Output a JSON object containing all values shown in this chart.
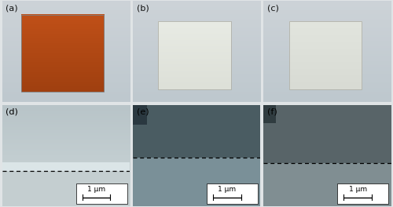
{
  "fig_width": 5.0,
  "fig_height": 2.64,
  "dpi": 100,
  "panel_labels": [
    "(a)",
    "(b)",
    "(c)",
    "(d)",
    "(e)",
    "(f)"
  ],
  "photo_bg": "#c8cfd4",
  "rect_a_color": "#a04010",
  "rect_a_color2": "#c05018",
  "rect_a_border": "#808080",
  "rect_b_color": "#dde0d8",
  "rect_b_border": "#b0b0a8",
  "rect_c_color": "#d8dbd4",
  "rect_c_border": "#b0b0a8",
  "panel_label_fontsize": 8,
  "scale_bar_text": "1 μm",
  "scale_bar_fontsize": 6.5,
  "dashed_line_color": "#000000",
  "fesem_d_top1": "#c8d2d4",
  "fesem_d_top2": "#b0bec2",
  "fesem_d_bright": "#dce8e8",
  "fesem_d_bot": "#c0cacc",
  "fesem_e_top": "#4a5c62",
  "fesem_e_bot": "#7a9098",
  "fesem_e_corner": "#2a3840",
  "fesem_f_top": "#586468",
  "fesem_f_bot": "#808e92",
  "fesem_f_corner": "#303c40"
}
